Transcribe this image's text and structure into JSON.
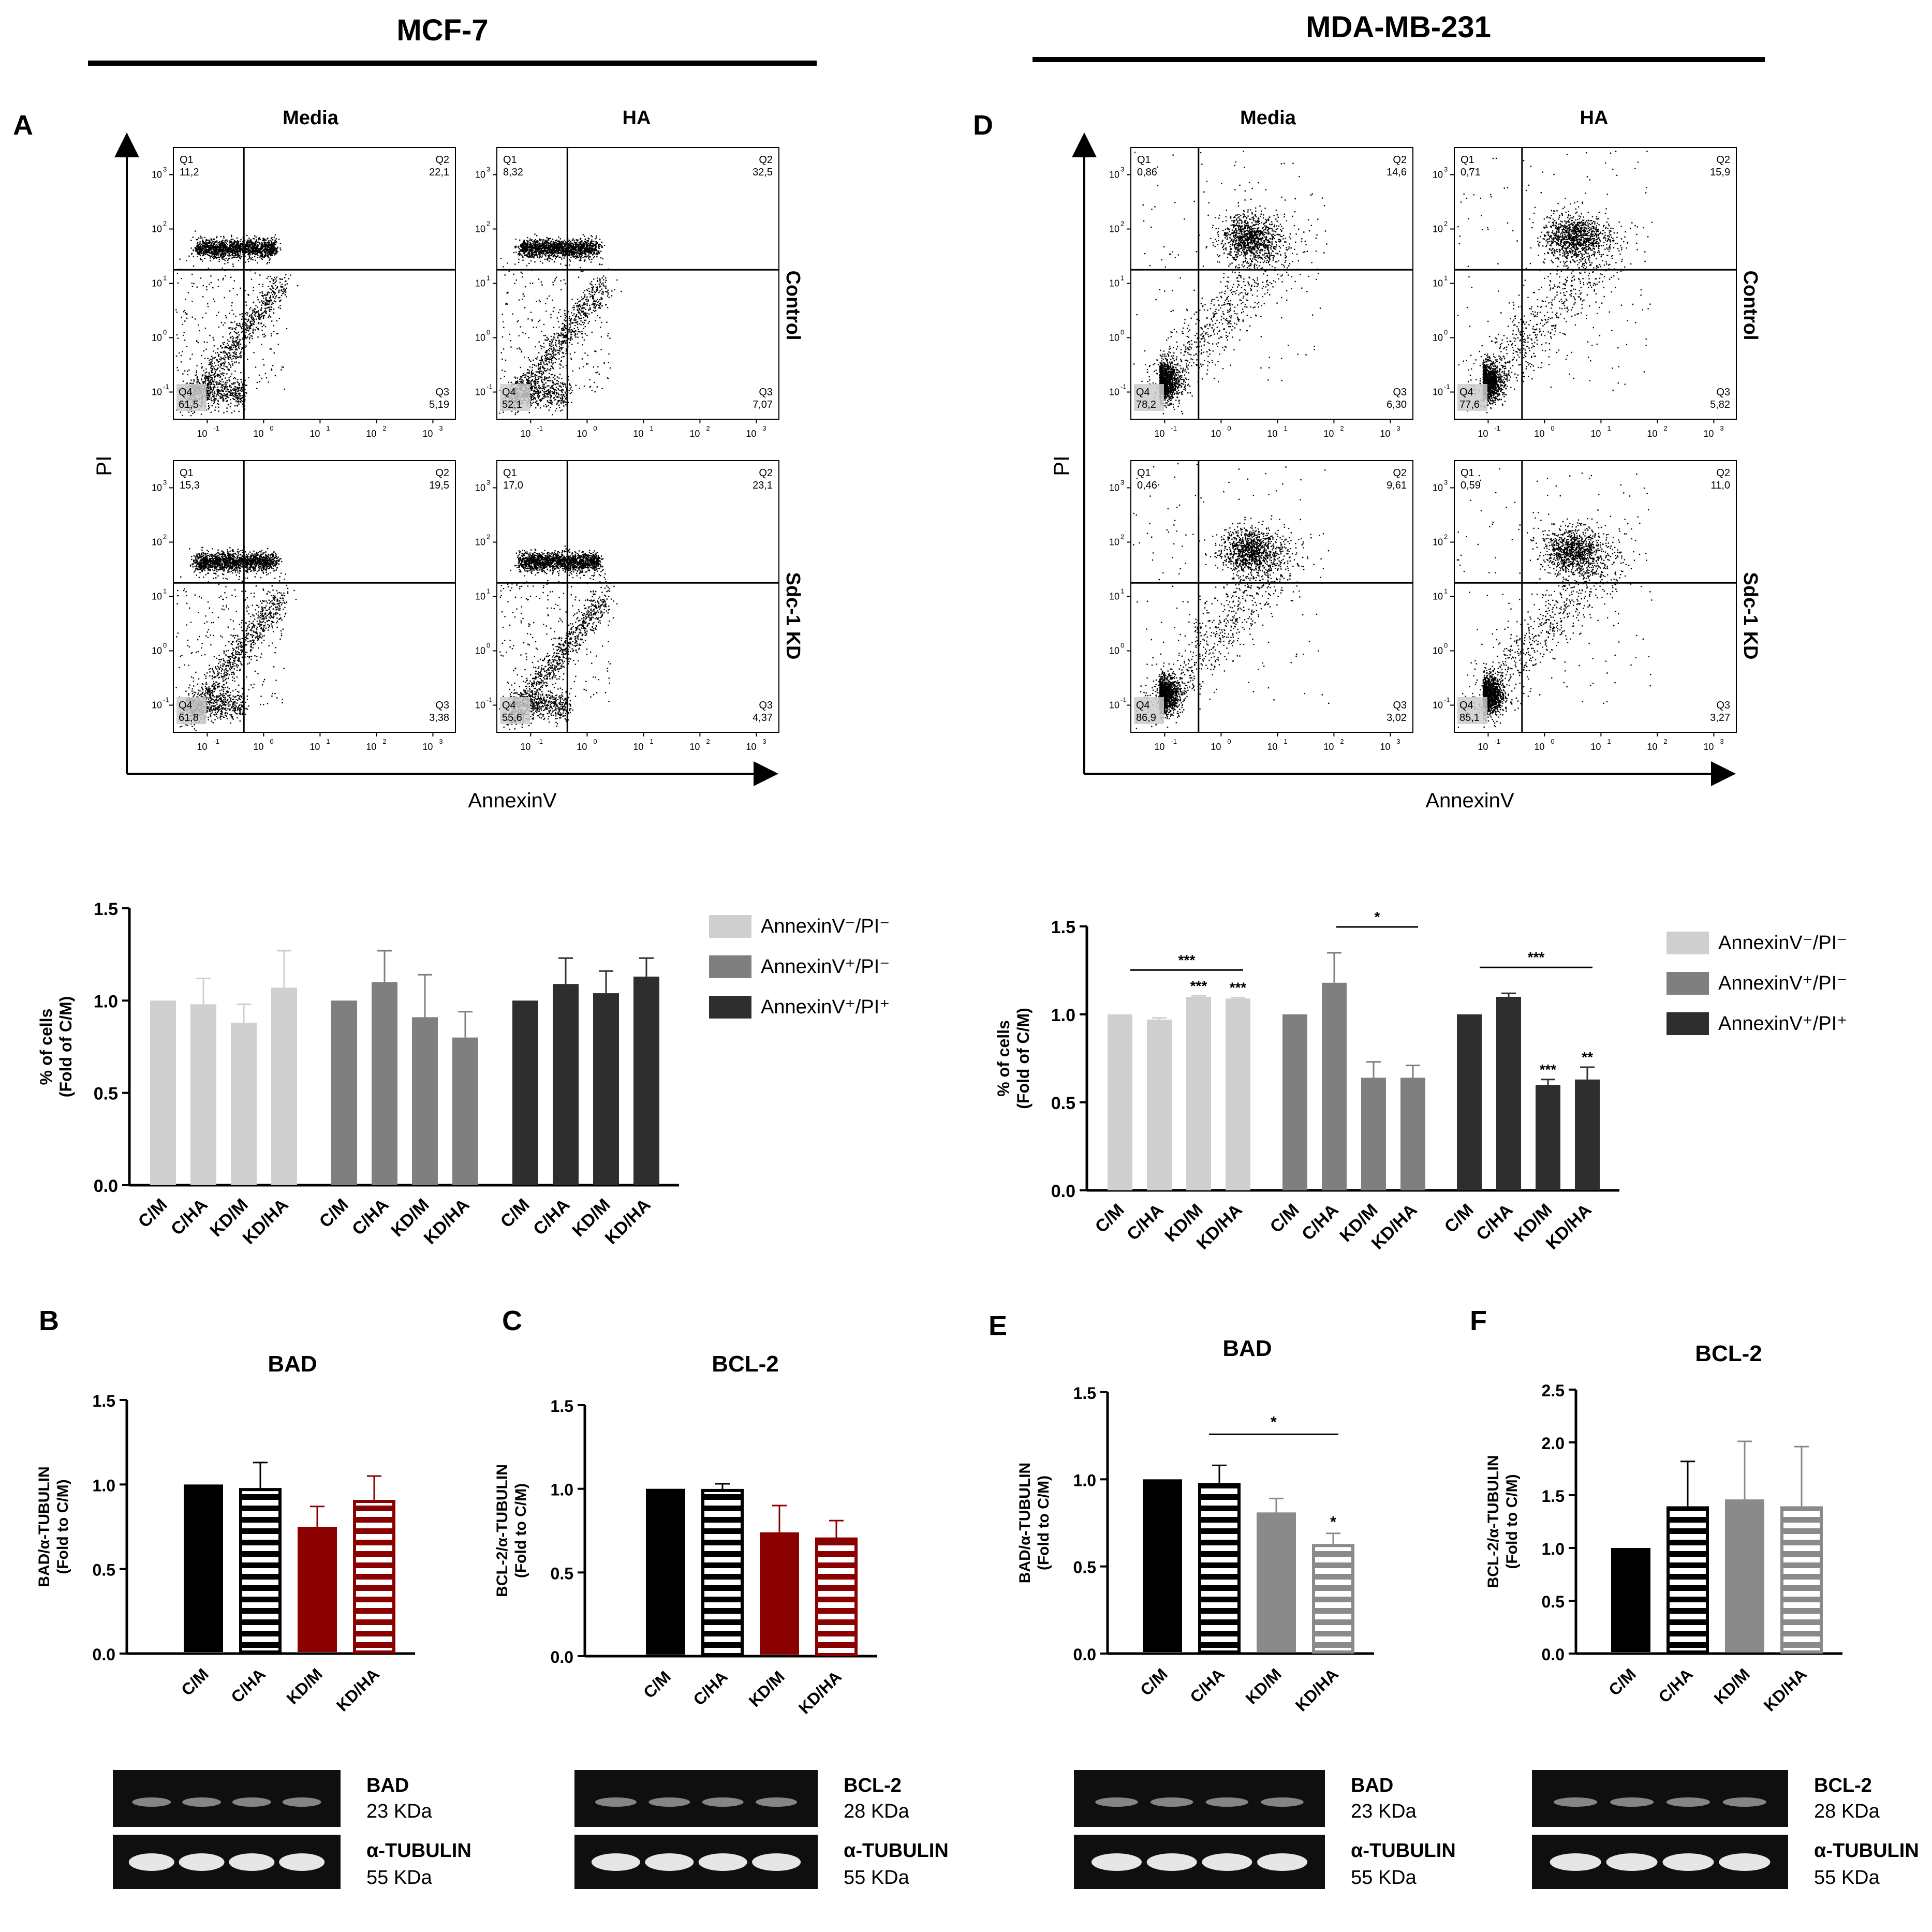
{
  "colors": {
    "light": "#cfcfcf",
    "mid": "#7f7f7f",
    "dark": "#2e2e2e",
    "black": "#000000",
    "red": "#8b0000",
    "grey": "#8a8a8a"
  },
  "headers": {
    "left": "MCF-7",
    "right": "MDA-MB-231"
  },
  "panels": {
    "A": "A",
    "B": "B",
    "C": "C",
    "D": "D",
    "E": "E",
    "F": "F"
  },
  "flow": {
    "x_label": "AnnexinV",
    "y_label": "PI",
    "col_media": "Media",
    "col_ha": "HA",
    "row_control": "Control",
    "row_kd": "Sdc-1 KD",
    "tick_labels": [
      "10",
      "10",
      "10",
      "10",
      "10"
    ],
    "tick_exps": [
      "-1",
      "0",
      "1",
      "2",
      "3"
    ],
    "quadrant_names": [
      "Q1",
      "Q2",
      "Q3",
      "Q4"
    ],
    "mcf7": [
      {
        "q1": "11,2",
        "q2": "22,1",
        "q3": "5,19",
        "q4": "61,5"
      },
      {
        "q1": "8,32",
        "q2": "32,5",
        "q3": "7,07",
        "q4": "52,1"
      },
      {
        "q1": "15,3",
        "q2": "19,5",
        "q3": "3,38",
        "q4": "61,8"
      },
      {
        "q1": "17,0",
        "q2": "23,1",
        "q3": "4,37",
        "q4": "55,6"
      }
    ],
    "mda": [
      {
        "q1": "0,86",
        "q2": "14,6",
        "q3": "6,30",
        "q4": "78,2"
      },
      {
        "q1": "0,71",
        "q2": "15,9",
        "q3": "5,82",
        "q4": "77,6"
      },
      {
        "q1": "0,46",
        "q2": "9,61",
        "q3": "3,02",
        "q4": "86,9"
      },
      {
        "q1": "0,59",
        "q2": "11,0",
        "q3": "3,27",
        "q4": "85,1"
      }
    ]
  },
  "chart_data": [
    {
      "id": "mcf7_apoptosis",
      "type": "bar",
      "ylabel_line1": "% of cells",
      "ylabel_line2": "(Fold of C/M)",
      "ylim": [
        0,
        1.5
      ],
      "yticks": [
        "0.0",
        "0.5",
        "1.0",
        "1.5"
      ],
      "categories": [
        "C/M",
        "C/HA",
        "KD/M",
        "KD/HA"
      ],
      "legend": [
        "AnnexinV⁻/PI⁻",
        "AnnexinV⁺/PI⁻",
        "AnnexinV⁺/PI⁺"
      ],
      "series": [
        {
          "name": "AnnexinV-/PI-",
          "values": [
            1.0,
            0.98,
            0.88,
            1.07
          ],
          "errors": [
            0,
            0.14,
            0.1,
            0.2
          ]
        },
        {
          "name": "AnnexinV+/PI-",
          "values": [
            1.0,
            1.1,
            0.91,
            0.8
          ],
          "errors": [
            0,
            0.17,
            0.23,
            0.14
          ]
        },
        {
          "name": "AnnexinV+/PI+",
          "values": [
            1.0,
            1.09,
            1.04,
            1.13
          ],
          "errors": [
            0,
            0.14,
            0.12,
            0.1
          ]
        }
      ]
    },
    {
      "id": "mda_apoptosis",
      "type": "bar",
      "ylabel_line1": "% of cells",
      "ylabel_line2": "(Fold of C/M)",
      "ylim": [
        0,
        1.5
      ],
      "yticks": [
        "0.0",
        "0.5",
        "1.0",
        "1.5"
      ],
      "categories": [
        "C/M",
        "C/HA",
        "KD/M",
        "KD/HA"
      ],
      "legend": [
        "AnnexinV⁻/PI⁻",
        "AnnexinV⁺/PI⁻",
        "AnnexinV⁺/PI⁺"
      ],
      "series": [
        {
          "name": "AnnexinV-/PI-",
          "values": [
            1.0,
            0.97,
            1.1,
            1.09
          ],
          "errors": [
            0,
            0.01,
            0.005,
            0.005
          ],
          "stars": [
            "",
            "",
            "***",
            "***"
          ]
        },
        {
          "name": "AnnexinV+/PI-",
          "values": [
            1.0,
            1.18,
            0.64,
            0.64
          ],
          "errors": [
            0,
            0.17,
            0.09,
            0.07
          ],
          "stars": [
            "",
            "",
            "",
            ""
          ]
        },
        {
          "name": "AnnexinV+/PI+",
          "values": [
            1.0,
            1.1,
            0.6,
            0.63
          ],
          "errors": [
            0,
            0.02,
            0.03,
            0.07
          ],
          "stars": [
            "",
            "",
            "***",
            "**"
          ]
        }
      ],
      "brackets": [
        "***",
        "*",
        "***"
      ]
    },
    {
      "id": "mcf7_bad",
      "type": "bar",
      "title": "BAD",
      "ylabel_line1": "BAD/α-TUBULIN",
      "ylabel_line2": "(Fold to C/M)",
      "ylim": [
        0,
        1.5
      ],
      "yticks": [
        "0.0",
        "0.5",
        "1.0",
        "1.5"
      ],
      "categories": [
        "C/M",
        "C/HA",
        "KD/M",
        "KD/HA"
      ],
      "values": [
        1.0,
        0.97,
        0.75,
        0.9
      ],
      "errors": [
        0,
        0.16,
        0.12,
        0.15
      ],
      "colors": [
        "#000000",
        "#000000",
        "#8b0000",
        "#8b0000"
      ],
      "hatched": [
        false,
        true,
        false,
        true
      ]
    },
    {
      "id": "mcf7_bcl2",
      "type": "bar",
      "title": "BCL-2",
      "ylabel_line1": "BCL-2/α-TUBULIN",
      "ylabel_line2": "(Fold to C/M)",
      "ylim": [
        0,
        1.5
      ],
      "yticks": [
        "0.0",
        "0.5",
        "1.0",
        "1.5"
      ],
      "categories": [
        "C/M",
        "C/HA",
        "KD/M",
        "KD/HA"
      ],
      "values": [
        1.0,
        0.99,
        0.74,
        0.7
      ],
      "errors": [
        0,
        0.04,
        0.16,
        0.11
      ],
      "colors": [
        "#000000",
        "#000000",
        "#8b0000",
        "#8b0000"
      ],
      "hatched": [
        false,
        true,
        false,
        true
      ]
    },
    {
      "id": "mda_bad",
      "type": "bar",
      "title": "BAD",
      "ylabel_line1": "BAD/α-TUBULIN",
      "ylabel_line2": "(Fold to C/M)",
      "ylim": [
        0,
        1.5
      ],
      "yticks": [
        "0.0",
        "0.5",
        "1.0",
        "1.5"
      ],
      "categories": [
        "C/M",
        "C/HA",
        "KD/M",
        "KD/HA"
      ],
      "values": [
        1.0,
        0.97,
        0.81,
        0.62
      ],
      "errors": [
        0,
        0.11,
        0.08,
        0.07
      ],
      "colors": [
        "#000000",
        "#000000",
        "#8a8a8a",
        "#8a8a8a"
      ],
      "hatched": [
        false,
        true,
        false,
        true
      ],
      "stars": [
        "",
        "",
        "",
        "*"
      ],
      "brackets": [
        "*"
      ]
    },
    {
      "id": "mda_bcl2",
      "type": "bar",
      "title": "BCL-2",
      "ylabel_line1": "BCL-2/α-TUBULIN",
      "ylabel_line2": "(Fold to C/M)",
      "ylim": [
        0,
        2.5
      ],
      "yticks": [
        "0.0",
        "0.5",
        "1.0",
        "1.5",
        "2.0",
        "2.5"
      ],
      "categories": [
        "C/M",
        "C/HA",
        "KD/M",
        "KD/HA"
      ],
      "values": [
        1.0,
        1.38,
        1.46,
        1.38
      ],
      "errors": [
        0,
        0.44,
        0.55,
        0.58
      ],
      "colors": [
        "#000000",
        "#000000",
        "#8a8a8a",
        "#8a8a8a"
      ],
      "hatched": [
        false,
        true,
        false,
        true
      ]
    }
  ],
  "blots": [
    {
      "protein": "BAD",
      "kda": "23 KDa",
      "loading": "α-TUBULIN",
      "loading_kda": "55 KDa"
    },
    {
      "protein": "BCL-2",
      "kda": "28 KDa",
      "loading": "α-TUBULIN",
      "loading_kda": "55 KDa"
    },
    {
      "protein": "BAD",
      "kda": "23 KDa",
      "loading": "α-TUBULIN",
      "loading_kda": "55 KDa"
    },
    {
      "protein": "BCL-2",
      "kda": "28 KDa",
      "loading": "α-TUBULIN",
      "loading_kda": "55 KDa"
    }
  ]
}
